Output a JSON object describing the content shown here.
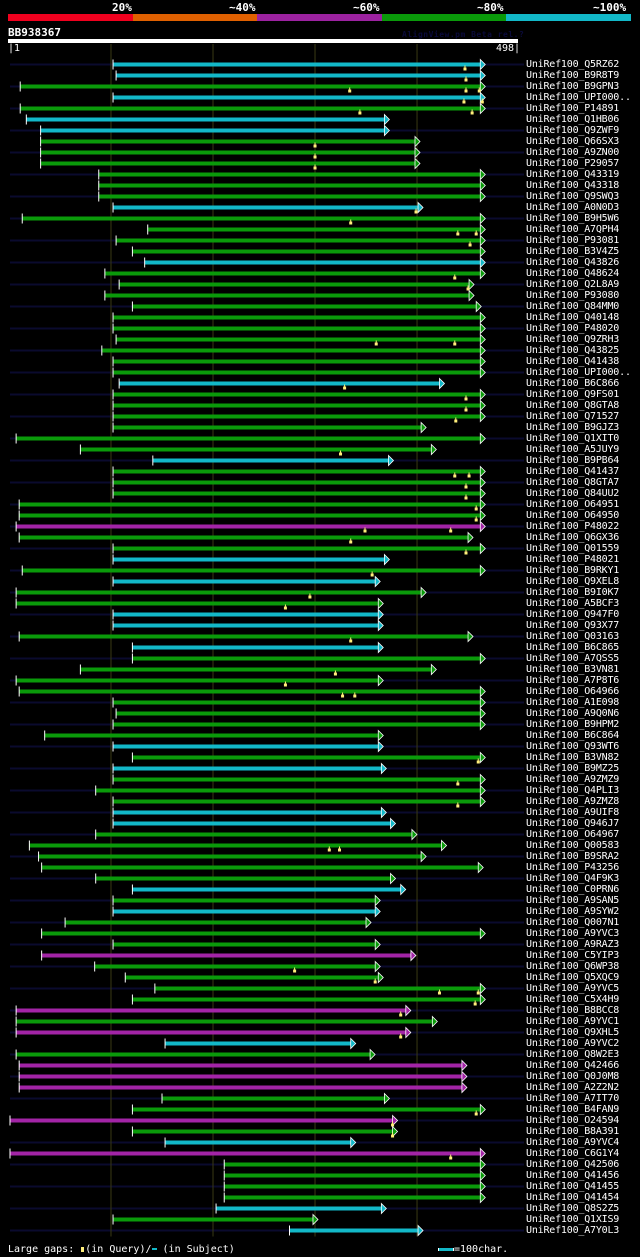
{
  "legend": {
    "labels": [
      "20%",
      "~40%",
      "~60%",
      "~80%",
      "~100%"
    ],
    "colors": [
      "#f0001e",
      "#e06000",
      "#9c22a0",
      "#0a9a0a",
      "#12b8c8"
    ]
  },
  "query": {
    "name": "BB938367",
    "start_label": "|1",
    "end_label": "498|",
    "length": 498,
    "watermark": "AlignView.pm Beta rel.?"
  },
  "grid_positions": [
    100,
    200,
    300,
    400
  ],
  "hits": [
    {
      "label": "UniRef100_Q5RZ62",
      "s": 102,
      "e": 462,
      "c": "cyan",
      "bg": true,
      "gaps": [
        447
      ]
    },
    {
      "label": "UniRef100_B9R8T9",
      "s": 105,
      "e": 462,
      "c": "cyan",
      "bg": false,
      "gaps": [
        448
      ]
    },
    {
      "label": "UniRef100_B9GPN3",
      "s": 11,
      "e": 462,
      "c": "green",
      "bg": true,
      "gaps": [
        334,
        448,
        461
      ]
    },
    {
      "label": "UniRef100_UPI000..",
      "s": 102,
      "e": 462,
      "c": "cyan",
      "bg": false,
      "gaps": [
        446,
        464
      ]
    },
    {
      "label": "UniRef100_P14891",
      "s": 11,
      "e": 462,
      "c": "green",
      "bg": true,
      "gaps": [
        344,
        454
      ]
    },
    {
      "label": "UniRef100_Q1HB06",
      "s": 17,
      "e": 368,
      "c": "cyan",
      "bg": false,
      "gaps": []
    },
    {
      "label": "UniRef100_Q9ZWF9",
      "s": 31,
      "e": 368,
      "c": "cyan",
      "bg": true,
      "gaps": []
    },
    {
      "label": "UniRef100_Q66SX3",
      "s": 31,
      "e": 398,
      "c": "green",
      "bg": false,
      "gaps": [
        300
      ]
    },
    {
      "label": "UniRef100_A9ZN00",
      "s": 31,
      "e": 398,
      "c": "green",
      "bg": true,
      "gaps": [
        300
      ]
    },
    {
      "label": "UniRef100_P29057",
      "s": 31,
      "e": 398,
      "c": "green",
      "bg": false,
      "gaps": [
        300
      ]
    },
    {
      "label": "UniRef100_Q43319",
      "s": 88,
      "e": 462,
      "c": "green",
      "bg": true,
      "gaps": []
    },
    {
      "label": "UniRef100_Q43318",
      "s": 88,
      "e": 462,
      "c": "green",
      "bg": false,
      "gaps": []
    },
    {
      "label": "UniRef100_Q9SWQ3",
      "s": 88,
      "e": 462,
      "c": "green",
      "bg": true,
      "gaps": []
    },
    {
      "label": "UniRef100_A0N0D3",
      "s": 102,
      "e": 401,
      "c": "cyan",
      "bg": false,
      "gaps": [
        399
      ]
    },
    {
      "label": "UniRef100_B9H5W6",
      "s": 13,
      "e": 462,
      "c": "green",
      "bg": true,
      "gaps": [
        335
      ]
    },
    {
      "label": "UniRef100_A7QPH4",
      "s": 136,
      "e": 462,
      "c": "green",
      "bg": false,
      "gaps": [
        440,
        458
      ]
    },
    {
      "label": "UniRef100_P93081",
      "s": 105,
      "e": 462,
      "c": "green",
      "bg": true,
      "gaps": [
        452
      ]
    },
    {
      "label": "UniRef100_B3V4Z5",
      "s": 121,
      "e": 462,
      "c": "green",
      "bg": false,
      "gaps": []
    },
    {
      "label": "UniRef100_Q43826",
      "s": 133,
      "e": 462,
      "c": "cyan",
      "bg": true,
      "gaps": []
    },
    {
      "label": "UniRef100_Q48624",
      "s": 94,
      "e": 462,
      "c": "green",
      "bg": false,
      "gaps": [
        437
      ]
    },
    {
      "label": "UniRef100_Q2L8A9",
      "s": 108,
      "e": 451,
      "c": "green",
      "bg": true,
      "gaps": [
        450
      ]
    },
    {
      "label": "UniRef100_P93080",
      "s": 94,
      "e": 451,
      "c": "green",
      "bg": false,
      "gaps": []
    },
    {
      "label": "UniRef100_Q84MM0",
      "s": 121,
      "e": 458,
      "c": "green",
      "bg": true,
      "gaps": []
    },
    {
      "label": "UniRef100_Q40148",
      "s": 102,
      "e": 462,
      "c": "green",
      "bg": false,
      "gaps": []
    },
    {
      "label": "UniRef100_P48020",
      "s": 102,
      "e": 462,
      "c": "green",
      "bg": true,
      "gaps": []
    },
    {
      "label": "UniRef100_Q9ZRH3",
      "s": 105,
      "e": 462,
      "c": "green",
      "bg": false,
      "gaps": [
        360,
        437
      ]
    },
    {
      "label": "UniRef100_Q43825",
      "s": 91,
      "e": 462,
      "c": "green",
      "bg": true,
      "gaps": []
    },
    {
      "label": "UniRef100_Q41438",
      "s": 102,
      "e": 462,
      "c": "green",
      "bg": false,
      "gaps": []
    },
    {
      "label": "UniRef100_UPI000..",
      "s": 102,
      "e": 462,
      "c": "green",
      "bg": true,
      "gaps": []
    },
    {
      "label": "UniRef100_B6C866",
      "s": 108,
      "e": 422,
      "c": "cyan",
      "bg": false,
      "gaps": [
        329
      ]
    },
    {
      "label": "UniRef100_Q9FS01",
      "s": 102,
      "e": 462,
      "c": "green",
      "bg": true,
      "gaps": [
        448
      ]
    },
    {
      "label": "UniRef100_Q8GTA8",
      "s": 102,
      "e": 462,
      "c": "green",
      "bg": false,
      "gaps": [
        448
      ]
    },
    {
      "label": "UniRef100_Q71527",
      "s": 102,
      "e": 462,
      "c": "green",
      "bg": true,
      "gaps": [
        438
      ]
    },
    {
      "label": "UniRef100_B9GJZ3",
      "s": 102,
      "e": 404,
      "c": "green",
      "bg": false,
      "gaps": []
    },
    {
      "label": "UniRef100_Q1XIT0",
      "s": 7,
      "e": 462,
      "c": "green",
      "bg": true,
      "gaps": []
    },
    {
      "label": "UniRef100_A5JUY9",
      "s": 70,
      "e": 414,
      "c": "green",
      "bg": false,
      "gaps": [
        325
      ]
    },
    {
      "label": "UniRef100_B9PB64",
      "s": 141,
      "e": 372,
      "c": "cyan",
      "bg": true,
      "gaps": []
    },
    {
      "label": "UniRef100_Q41437",
      "s": 102,
      "e": 462,
      "c": "green",
      "bg": false,
      "gaps": [
        437,
        451
      ]
    },
    {
      "label": "UniRef100_Q8GTA7",
      "s": 102,
      "e": 462,
      "c": "green",
      "bg": true,
      "gaps": [
        448
      ]
    },
    {
      "label": "UniRef100_Q84UU2",
      "s": 102,
      "e": 462,
      "c": "green",
      "bg": false,
      "gaps": [
        448
      ]
    },
    {
      "label": "UniRef100_O64951",
      "s": 10,
      "e": 462,
      "c": "green",
      "bg": true,
      "gaps": [
        458
      ]
    },
    {
      "label": "UniRef100_O64950",
      "s": 10,
      "e": 462,
      "c": "green",
      "bg": false,
      "gaps": [
        458
      ]
    },
    {
      "label": "UniRef100_P48022",
      "s": 7,
      "e": 462,
      "c": "magenta",
      "bg": true,
      "gaps": [
        349,
        433
      ]
    },
    {
      "label": "UniRef100_Q6GX36",
      "s": 10,
      "e": 450,
      "c": "green",
      "bg": false,
      "gaps": [
        335
      ]
    },
    {
      "label": "UniRef100_Q01559",
      "s": 102,
      "e": 462,
      "c": "green",
      "bg": true,
      "gaps": [
        448
      ]
    },
    {
      "label": "UniRef100_P48021",
      "s": 102,
      "e": 368,
      "c": "cyan",
      "bg": false,
      "gaps": []
    },
    {
      "label": "UniRef100_B9RKY1",
      "s": 13,
      "e": 462,
      "c": "green",
      "bg": true,
      "gaps": [
        356
      ]
    },
    {
      "label": "UniRef100_Q9XEL8",
      "s": 102,
      "e": 359,
      "c": "cyan",
      "bg": false,
      "gaps": []
    },
    {
      "label": "UniRef100_B9I0K7",
      "s": 7,
      "e": 404,
      "c": "green",
      "bg": true,
      "gaps": [
        295
      ]
    },
    {
      "label": "UniRef100_A5BCF3",
      "s": 7,
      "e": 362,
      "c": "green",
      "bg": false,
      "gaps": [
        271
      ]
    },
    {
      "label": "UniRef100_Q947F0",
      "s": 102,
      "e": 362,
      "c": "cyan",
      "bg": true,
      "gaps": []
    },
    {
      "label": "UniRef100_Q93X77",
      "s": 102,
      "e": 362,
      "c": "cyan",
      "bg": false,
      "gaps": []
    },
    {
      "label": "UniRef100_Q03163",
      "s": 10,
      "e": 450,
      "c": "green",
      "bg": true,
      "gaps": [
        335
      ]
    },
    {
      "label": "UniRef100_B6C865",
      "s": 121,
      "e": 362,
      "c": "cyan",
      "bg": false,
      "gaps": []
    },
    {
      "label": "UniRef100_A7QSS5",
      "s": 121,
      "e": 462,
      "c": "green",
      "bg": true,
      "gaps": []
    },
    {
      "label": "UniRef100_B3VN81",
      "s": 70,
      "e": 414,
      "c": "green",
      "bg": false,
      "gaps": [
        320
      ]
    },
    {
      "label": "UniRef100_A7P8T6",
      "s": 7,
      "e": 362,
      "c": "green",
      "bg": true,
      "gaps": [
        271
      ]
    },
    {
      "label": "UniRef100_O64966",
      "s": 10,
      "e": 462,
      "c": "green",
      "bg": false,
      "gaps": [
        327,
        339
      ]
    },
    {
      "label": "UniRef100_A1E098",
      "s": 102,
      "e": 462,
      "c": "green",
      "bg": true,
      "gaps": []
    },
    {
      "label": "UniRef100_A9Q0N6",
      "s": 105,
      "e": 462,
      "c": "green",
      "bg": false,
      "gaps": []
    },
    {
      "label": "UniRef100_B9HPM2",
      "s": 102,
      "e": 462,
      "c": "green",
      "bg": true,
      "gaps": []
    },
    {
      "label": "UniRef100_B6C864",
      "s": 35,
      "e": 362,
      "c": "green",
      "bg": false,
      "gaps": []
    },
    {
      "label": "UniRef100_Q93WT6",
      "s": 102,
      "e": 362,
      "c": "cyan",
      "bg": true,
      "gaps": []
    },
    {
      "label": "UniRef100_B3VN82",
      "s": 121,
      "e": 462,
      "c": "green",
      "bg": false,
      "gaps": [
        460
      ]
    },
    {
      "label": "UniRef100_B9MZ25",
      "s": 102,
      "e": 365,
      "c": "cyan",
      "bg": true,
      "gaps": []
    },
    {
      "label": "UniRef100_A9ZMZ9",
      "s": 102,
      "e": 462,
      "c": "green",
      "bg": false,
      "gaps": [
        440
      ]
    },
    {
      "label": "UniRef100_Q4PLI3",
      "s": 85,
      "e": 462,
      "c": "green",
      "bg": true,
      "gaps": []
    },
    {
      "label": "UniRef100_A9ZMZ8",
      "s": 102,
      "e": 462,
      "c": "green",
      "bg": false,
      "gaps": [
        440
      ]
    },
    {
      "label": "UniRef100_A9UIF8",
      "s": 102,
      "e": 365,
      "c": "cyan",
      "bg": true,
      "gaps": []
    },
    {
      "label": "UniRef100_Q946J7",
      "s": 102,
      "e": 374,
      "c": "cyan",
      "bg": false,
      "gaps": []
    },
    {
      "label": "UniRef100_O64967",
      "s": 85,
      "e": 395,
      "c": "green",
      "bg": true,
      "gaps": []
    },
    {
      "label": "UniRef100_Q00583",
      "s": 20,
      "e": 424,
      "c": "green",
      "bg": false,
      "gaps": [
        314,
        324
      ]
    },
    {
      "label": "UniRef100_B9SRA2",
      "s": 29,
      "e": 404,
      "c": "green",
      "bg": true,
      "gaps": []
    },
    {
      "label": "UniRef100_P43256",
      "s": 32,
      "e": 460,
      "c": "green",
      "bg": false,
      "gaps": []
    },
    {
      "label": "UniRef100_Q4F9K3",
      "s": 85,
      "e": 374,
      "c": "green",
      "bg": true,
      "gaps": []
    },
    {
      "label": "UniRef100_C0PRN6",
      "s": 121,
      "e": 384,
      "c": "cyan",
      "bg": false,
      "gaps": []
    },
    {
      "label": "UniRef100_A9SAN5",
      "s": 102,
      "e": 359,
      "c": "green",
      "bg": true,
      "gaps": []
    },
    {
      "label": "UniRef100_A9SYW2",
      "s": 102,
      "e": 359,
      "c": "cyan",
      "bg": false,
      "gaps": []
    },
    {
      "label": "UniRef100_Q007N1",
      "s": 55,
      "e": 350,
      "c": "green",
      "bg": true,
      "gaps": []
    },
    {
      "label": "UniRef100_A9YVC3",
      "s": 32,
      "e": 462,
      "c": "green",
      "bg": false,
      "gaps": []
    },
    {
      "label": "UniRef100_A9RAZ3",
      "s": 102,
      "e": 359,
      "c": "green",
      "bg": true,
      "gaps": []
    },
    {
      "label": "UniRef100_C5YIP3",
      "s": 32,
      "e": 394,
      "c": "magenta",
      "bg": false,
      "gaps": []
    },
    {
      "label": "UniRef100_Q6WP38",
      "s": 84,
      "e": 359,
      "c": "green",
      "bg": true,
      "gaps": [
        280
      ]
    },
    {
      "label": "UniRef100_Q5XQC9",
      "s": 114,
      "e": 362,
      "c": "green",
      "bg": false,
      "gaps": [
        359
      ]
    },
    {
      "label": "UniRef100_A9YVC5",
      "s": 143,
      "e": 462,
      "c": "green",
      "bg": true,
      "gaps": [
        422,
        460
      ]
    },
    {
      "label": "UniRef100_C5X4H9",
      "s": 121,
      "e": 462,
      "c": "green",
      "bg": false,
      "gaps": [
        457
      ]
    },
    {
      "label": "UniRef100_B8BCC8",
      "s": 7,
      "e": 389,
      "c": "magenta",
      "bg": true,
      "gaps": [
        384
      ]
    },
    {
      "label": "UniRef100_A9YVC1",
      "s": 7,
      "e": 415,
      "c": "green",
      "bg": false,
      "gaps": []
    },
    {
      "label": "UniRef100_Q9XHL5",
      "s": 7,
      "e": 389,
      "c": "magenta",
      "bg": true,
      "gaps": [
        384
      ]
    },
    {
      "label": "UniRef100_A9YVC2",
      "s": 153,
      "e": 335,
      "c": "cyan",
      "bg": false,
      "gaps": []
    },
    {
      "label": "UniRef100_Q8W2E3",
      "s": 7,
      "e": 354,
      "c": "green",
      "bg": true,
      "gaps": []
    },
    {
      "label": "UniRef100_Q42466",
      "s": 10,
      "e": 444,
      "c": "magenta",
      "bg": false,
      "gaps": []
    },
    {
      "label": "UniRef100_Q0J0M8",
      "s": 10,
      "e": 444,
      "c": "magenta",
      "bg": true,
      "gaps": []
    },
    {
      "label": "UniRef100_A2Z2N2",
      "s": 10,
      "e": 444,
      "c": "magenta",
      "bg": false,
      "gaps": []
    },
    {
      "label": "UniRef100_A7IT70",
      "s": 150,
      "e": 368,
      "c": "green",
      "bg": true,
      "gaps": []
    },
    {
      "label": "UniRef100_B4FAN9",
      "s": 121,
      "e": 462,
      "c": "green",
      "bg": false,
      "gaps": [
        458
      ]
    },
    {
      "label": "UniRef100_O24594",
      "s": 1,
      "e": 376,
      "c": "magenta",
      "bg": true,
      "gaps": [
        376
      ]
    },
    {
      "label": "UniRef100_B8A391",
      "s": 121,
      "e": 376,
      "c": "green",
      "bg": false,
      "gaps": [
        376
      ]
    },
    {
      "label": "UniRef100_A9YVC4",
      "s": 153,
      "e": 335,
      "c": "cyan",
      "bg": true,
      "gaps": []
    },
    {
      "label": "UniRef100_C6G1Y4",
      "s": 1,
      "e": 462,
      "c": "magenta",
      "bg": false,
      "gaps": [
        433
      ]
    },
    {
      "label": "UniRef100_Q42506",
      "s": 211,
      "e": 462,
      "c": "green",
      "bg": true,
      "gaps": []
    },
    {
      "label": "UniRef100_Q41456",
      "s": 211,
      "e": 462,
      "c": "green",
      "bg": false,
      "gaps": []
    },
    {
      "label": "UniRef100_Q41455",
      "s": 211,
      "e": 462,
      "c": "green",
      "bg": true,
      "gaps": []
    },
    {
      "label": "UniRef100_Q41454",
      "s": 211,
      "e": 462,
      "c": "green",
      "bg": false,
      "gaps": []
    },
    {
      "label": "UniRef100_Q8S2Z5",
      "s": 203,
      "e": 365,
      "c": "cyan",
      "bg": true,
      "gaps": []
    },
    {
      "label": "UniRef100_Q1XIS9",
      "s": 102,
      "e": 298,
      "c": "green",
      "bg": false,
      "gaps": []
    },
    {
      "label": "UniRef100_A7Y0L3",
      "s": 275,
      "e": 401,
      "c": "cyan",
      "bg": true,
      "gaps": []
    }
  ],
  "hit_colors": {
    "cyan": "#12b8c8",
    "green": "#0a9a0a",
    "magenta": "#a224a6"
  },
  "footer": {
    "large_gaps_label": "Large gaps:",
    "in_query": "(in Query)/",
    "in_subject": "(in Subject)",
    "scale_label": "=100char."
  }
}
